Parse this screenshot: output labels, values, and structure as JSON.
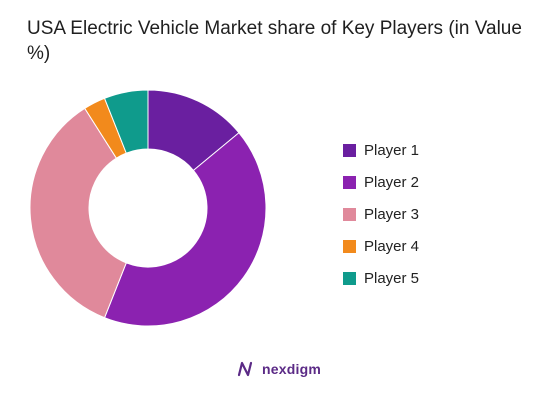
{
  "chart_data": {
    "type": "pie",
    "title": "USA Electric Vehicle Market share of Key Players (in Value %)",
    "hole": true,
    "legend_position": "right",
    "series": [
      {
        "name": "Player 1",
        "value": 14,
        "color": "#6a1fa0"
      },
      {
        "name": "Player 2",
        "value": 42,
        "color": "#8b22b0"
      },
      {
        "name": "Player 3",
        "value": 35,
        "color": "#e0899b"
      },
      {
        "name": "Player 4",
        "value": 3,
        "color": "#f28a1c"
      },
      {
        "name": "Player 5",
        "value": 6,
        "color": "#0f9b8c"
      }
    ]
  },
  "brand": {
    "name": "nexdigm",
    "color": "#5b2a86"
  }
}
